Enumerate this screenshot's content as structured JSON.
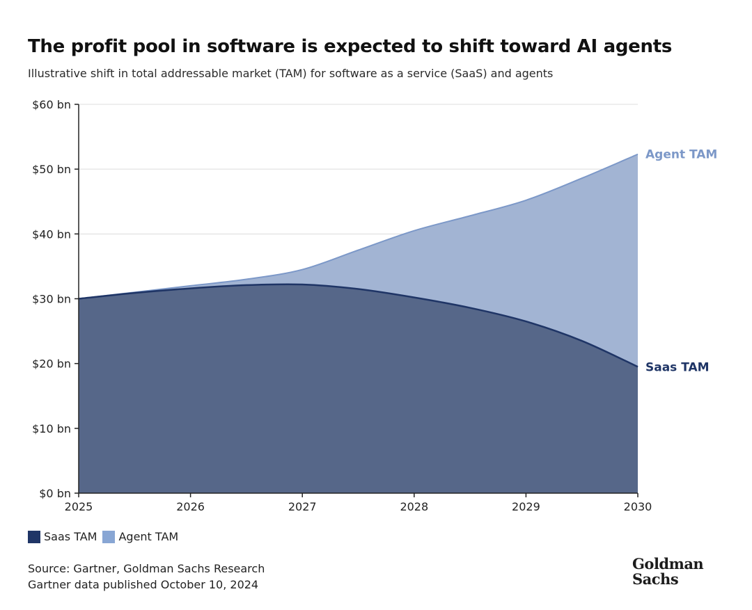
{
  "title": "The profit pool in software is expected to shift toward AI agents",
  "subtitle": "Illustrative shift in total addressable market (TAM) for software as a service (SaaS) and agents",
  "source_lines": [
    "Source: Gartner, Goldman Sachs Research",
    "Gartner data published October 10, 2024"
  ],
  "logo": {
    "line1": "Goldman",
    "line2": "Sachs"
  },
  "colors": {
    "saas": "#566789",
    "saas_line": "#1f3566",
    "agent": "#a2b4d3",
    "agent_line": "#7c98c8",
    "legend_saas": "#1f3566",
    "legend_agent": "#88a6d4"
  },
  "legend": [
    {
      "label": "Saas TAM"
    },
    {
      "label": "Agent TAM"
    }
  ],
  "chart_data": {
    "type": "area",
    "x": [
      2025,
      2025.5,
      2026,
      2026.5,
      2027,
      2027.5,
      2028,
      2028.5,
      2029,
      2029.5,
      2030
    ],
    "x_tick_labels": [
      "2025",
      "2026",
      "2027",
      "2028",
      "2029",
      "2030"
    ],
    "y_tick_labels": [
      "$0 bn",
      "$10 bn",
      "$20 bn",
      "$30 bn",
      "$40 bn",
      "$50 bn",
      "$60 bn"
    ],
    "ylim": [
      0,
      60
    ],
    "xlim": [
      2025,
      2030
    ],
    "grid": true,
    "series": [
      {
        "name": "Saas TAM",
        "values": [
          30,
          30.9,
          31.6,
          32.1,
          32.2,
          31.5,
          30.2,
          28.6,
          26.5,
          23.5,
          19.5
        ]
      },
      {
        "name": "Agent TAM",
        "values": [
          30,
          31,
          32,
          33,
          34.5,
          37.5,
          40.5,
          42.8,
          45.2,
          48.6,
          52.3
        ]
      }
    ],
    "series_end_labels": [
      "Saas TAM",
      "Agent TAM"
    ],
    "legend_position": "bottom-left"
  }
}
